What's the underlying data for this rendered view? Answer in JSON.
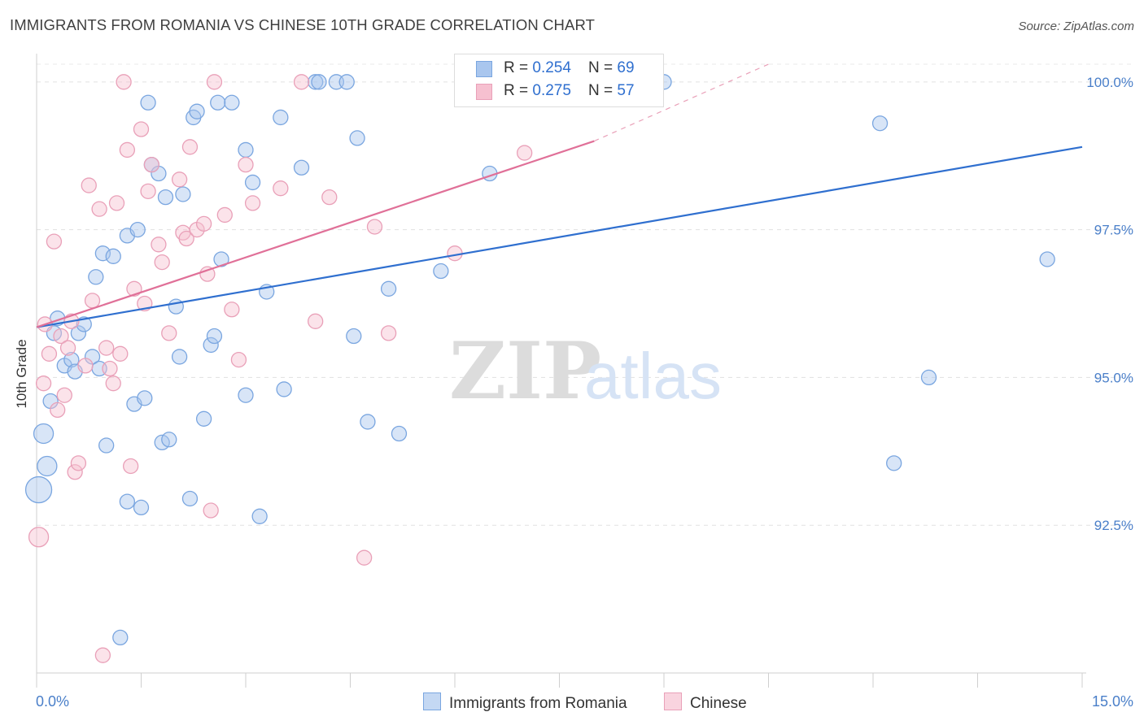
{
  "title": "IMMIGRANTS FROM ROMANIA VS CHINESE 10TH GRADE CORRELATION CHART",
  "source": "Source: ZipAtlas.com",
  "watermark": {
    "zip": "ZIP",
    "atlas": "atlas"
  },
  "legend_box": {
    "rows": [
      {
        "r_label": "R = ",
        "r_value": "0.254",
        "n_label": "N = ",
        "n_value": "69",
        "color": "#a9c6ee",
        "border": "#7aa6e0"
      },
      {
        "r_label": "R = ",
        "r_value": "0.275",
        "n_label": "N = ",
        "n_value": "57",
        "color": "#f6c0d0",
        "border": "#e9a0b8"
      }
    ]
  },
  "bottom_legend": [
    {
      "label": "Immigrants from Romania",
      "color": "#c4d8f3",
      "border": "#7aa6e0"
    },
    {
      "label": "Chinese",
      "color": "#f9d4df",
      "border": "#e9a0b8"
    }
  ],
  "chart_data": {
    "type": "scatter",
    "title": "IMMIGRANTS FROM ROMANIA VS CHINESE 10TH GRADE CORRELATION CHART",
    "xlabel": "",
    "ylabel": "10th Grade",
    "xlim": [
      0,
      15
    ],
    "ylim": [
      90.0,
      100.3
    ],
    "x_tick_labels": [
      "0.0%",
      "15.0%"
    ],
    "y_ticks": [
      92.5,
      95.0,
      97.5,
      100.0
    ],
    "y_tick_labels": [
      "92.5%",
      "95.0%",
      "97.5%",
      "100.0%"
    ],
    "grid": true,
    "legend_position": "top-center",
    "series": [
      {
        "name": "Immigrants from Romania",
        "color": "#7aa6e0",
        "fill": "#a9c6ee",
        "R": 0.254,
        "N": 69,
        "trend": {
          "x": [
            0.0,
            15.0
          ],
          "y": [
            95.85,
            98.9
          ]
        },
        "points": [
          [
            0.03,
            93.1,
            16
          ],
          [
            0.1,
            94.05,
            12
          ],
          [
            0.15,
            93.5,
            12
          ],
          [
            0.2,
            94.6,
            9
          ],
          [
            0.25,
            95.75,
            9
          ],
          [
            0.3,
            96.0,
            9
          ],
          [
            0.4,
            95.2,
            9
          ],
          [
            0.5,
            95.3,
            9
          ],
          [
            0.55,
            95.1,
            9
          ],
          [
            0.6,
            95.75,
            9
          ],
          [
            0.68,
            95.9,
            9
          ],
          [
            0.8,
            95.35,
            9
          ],
          [
            0.9,
            95.15,
            9
          ],
          [
            0.85,
            96.7,
            9
          ],
          [
            0.95,
            97.1,
            9
          ],
          [
            1.0,
            93.85,
            9
          ],
          [
            1.1,
            97.05,
            9
          ],
          [
            1.2,
            90.6,
            9
          ],
          [
            1.3,
            92.9,
            9
          ],
          [
            1.3,
            97.4,
            9
          ],
          [
            1.4,
            94.55,
            9
          ],
          [
            1.45,
            97.5,
            9
          ],
          [
            1.5,
            92.8,
            9
          ],
          [
            1.55,
            94.65,
            9
          ],
          [
            1.6,
            99.65,
            9
          ],
          [
            1.65,
            98.6,
            9
          ],
          [
            1.75,
            98.45,
            9
          ],
          [
            1.8,
            93.9,
            9
          ],
          [
            1.85,
            98.05,
            9
          ],
          [
            1.9,
            93.95,
            9
          ],
          [
            2.0,
            96.2,
            9
          ],
          [
            2.05,
            95.35,
            9
          ],
          [
            2.1,
            98.1,
            9
          ],
          [
            2.2,
            92.95,
            9
          ],
          [
            2.25,
            99.4,
            9
          ],
          [
            2.3,
            99.5,
            9
          ],
          [
            2.4,
            94.3,
            9
          ],
          [
            2.5,
            95.55,
            9
          ],
          [
            2.55,
            95.7,
            9
          ],
          [
            2.6,
            99.65,
            9
          ],
          [
            2.65,
            97.0,
            9
          ],
          [
            2.8,
            99.65,
            9
          ],
          [
            3.0,
            98.85,
            9
          ],
          [
            3.0,
            94.7,
            9
          ],
          [
            3.1,
            98.3,
            9
          ],
          [
            3.2,
            92.65,
            9
          ],
          [
            3.3,
            96.45,
            9
          ],
          [
            3.5,
            99.4,
            9
          ],
          [
            3.55,
            94.8,
            9
          ],
          [
            3.8,
            98.55,
            9
          ],
          [
            4.0,
            100.0,
            9
          ],
          [
            4.05,
            100.0,
            9
          ],
          [
            4.3,
            100.0,
            9
          ],
          [
            4.45,
            100.0,
            9
          ],
          [
            4.55,
            95.7,
            9
          ],
          [
            4.6,
            99.05,
            9
          ],
          [
            4.75,
            94.25,
            9
          ],
          [
            5.05,
            96.5,
            9
          ],
          [
            5.2,
            94.05,
            9
          ],
          [
            5.8,
            96.8,
            9
          ],
          [
            6.2,
            100.0,
            9
          ],
          [
            6.5,
            98.45,
            9
          ],
          [
            9.0,
            100.0,
            9
          ],
          [
            12.1,
            99.3,
            9
          ],
          [
            12.3,
            93.55,
            9
          ],
          [
            12.8,
            95.0,
            9
          ],
          [
            14.5,
            97.0,
            9
          ]
        ]
      },
      {
        "name": "Chinese",
        "color": "#e9a0b8",
        "fill": "#f6c0d0",
        "R": 0.275,
        "N": 57,
        "trend": {
          "x": [
            0.0,
            8.0
          ],
          "y": [
            95.85,
            99.0
          ]
        },
        "trend_dashed": {
          "x": [
            8.0,
            10.5
          ],
          "y": [
            99.0,
            100.3
          ]
        },
        "points": [
          [
            0.03,
            92.3,
            12
          ],
          [
            0.1,
            94.9,
            9
          ],
          [
            0.12,
            95.9,
            9
          ],
          [
            0.18,
            95.4,
            9
          ],
          [
            0.25,
            97.3,
            9
          ],
          [
            0.3,
            94.45,
            9
          ],
          [
            0.35,
            95.7,
            9
          ],
          [
            0.4,
            94.7,
            9
          ],
          [
            0.45,
            95.5,
            9
          ],
          [
            0.5,
            95.95,
            9
          ],
          [
            0.55,
            93.4,
            9
          ],
          [
            0.6,
            93.55,
            9
          ],
          [
            0.7,
            95.2,
            9
          ],
          [
            0.75,
            98.25,
            9
          ],
          [
            0.8,
            96.3,
            9
          ],
          [
            0.9,
            97.85,
            9
          ],
          [
            0.95,
            90.3,
            9
          ],
          [
            1.0,
            95.5,
            9
          ],
          [
            1.05,
            95.15,
            9
          ],
          [
            1.1,
            94.9,
            9
          ],
          [
            1.15,
            97.95,
            9
          ],
          [
            1.2,
            95.4,
            9
          ],
          [
            1.25,
            100.0,
            9
          ],
          [
            1.3,
            98.85,
            9
          ],
          [
            1.35,
            93.5,
            9
          ],
          [
            1.4,
            96.5,
            9
          ],
          [
            1.5,
            99.2,
            9
          ],
          [
            1.55,
            96.25,
            9
          ],
          [
            1.6,
            98.15,
            9
          ],
          [
            1.65,
            98.6,
            9
          ],
          [
            1.75,
            97.25,
            9
          ],
          [
            1.8,
            96.95,
            9
          ],
          [
            1.9,
            95.75,
            9
          ],
          [
            2.05,
            98.35,
            9
          ],
          [
            2.1,
            97.45,
            9
          ],
          [
            2.15,
            97.35,
            9
          ],
          [
            2.2,
            98.9,
            9
          ],
          [
            2.3,
            97.5,
            9
          ],
          [
            2.4,
            97.6,
            9
          ],
          [
            2.45,
            96.75,
            9
          ],
          [
            2.5,
            92.75,
            9
          ],
          [
            2.55,
            100.0,
            9
          ],
          [
            2.7,
            97.75,
            9
          ],
          [
            2.8,
            96.15,
            9
          ],
          [
            2.9,
            95.3,
            9
          ],
          [
            3.0,
            98.6,
            9
          ],
          [
            3.1,
            97.95,
            9
          ],
          [
            3.5,
            98.2,
            9
          ],
          [
            3.8,
            100.0,
            9
          ],
          [
            4.0,
            95.95,
            9
          ],
          [
            4.2,
            98.05,
            9
          ],
          [
            4.7,
            91.95,
            9
          ],
          [
            4.85,
            97.55,
            9
          ],
          [
            5.05,
            95.75,
            9
          ],
          [
            6.0,
            97.1,
            9
          ],
          [
            7.0,
            98.8,
            9
          ]
        ]
      }
    ]
  }
}
